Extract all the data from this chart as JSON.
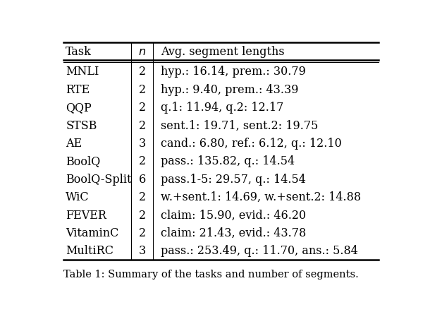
{
  "headers": [
    "Task",
    "n",
    "Avg. segment lengths"
  ],
  "rows": [
    [
      "MNLI",
      "2",
      "hyp.: 16.14, prem.: 30.79"
    ],
    [
      "RTE",
      "2",
      "hyp.: 9.40, prem.: 43.39"
    ],
    [
      "QQP",
      "2",
      "q.1: 11.94, q.2: 12.17"
    ],
    [
      "STSB",
      "2",
      "sent.1: 19.71, sent.2: 19.75"
    ],
    [
      "AE",
      "3",
      "cand.: 6.80, ref.: 6.12, q.: 12.10"
    ],
    [
      "BoolQ",
      "2",
      "pass.: 135.82, q.: 14.54"
    ],
    [
      "BoolQ-Split",
      "6",
      "pass.1-5: 29.57, q.: 14.54"
    ],
    [
      "WiC",
      "2",
      "w.+sent.1: 14.69, w.+sent.2: 14.88"
    ],
    [
      "FEVER",
      "2",
      "claim: 15.90, evid.: 46.20"
    ],
    [
      "VitaminC",
      "2",
      "claim: 21.43, evid.: 43.78"
    ],
    [
      "MultiRC",
      "3",
      "pass.: 253.49, q.: 11.70, ans.: 5.84"
    ]
  ],
  "header_fontsize": 11.5,
  "row_fontsize": 11.5,
  "caption_fontsize": 10.5,
  "background_color": "#ffffff",
  "text_color": "#000000",
  "line_color": "#000000",
  "caption": "Table 1: Summary of the tasks and number of segments."
}
